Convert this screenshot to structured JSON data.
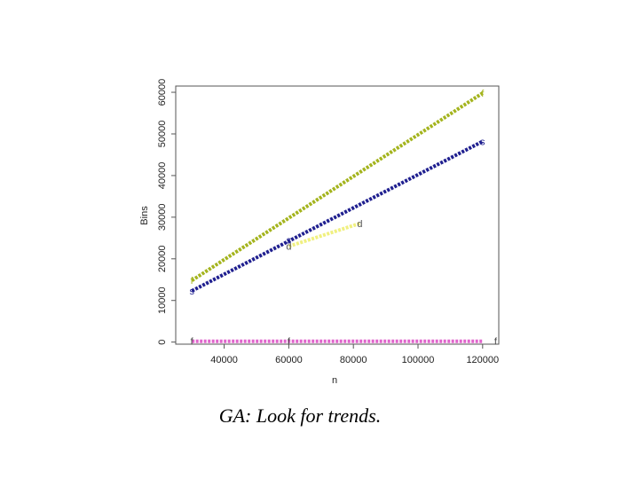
{
  "chart_data": {
    "type": "line",
    "xlabel": "n",
    "ylabel": "Bins",
    "xlim": [
      25000,
      125000
    ],
    "ylim": [
      -500,
      61500
    ],
    "x_ticks": [
      40000,
      60000,
      80000,
      100000,
      120000
    ],
    "x_tick_labels": [
      "40000",
      "60000",
      "80000",
      "100000",
      "120000"
    ],
    "y_ticks": [
      0,
      10000,
      20000,
      30000,
      40000,
      50000,
      60000
    ],
    "y_tick_labels": [
      "0",
      "10000",
      "20000",
      "30000",
      "40000",
      "50000",
      "60000"
    ],
    "grid": false,
    "series": [
      {
        "marker": "f",
        "color": "#a4b41e",
        "x": [
          30000,
          120000
        ],
        "y": [
          14800,
          59800
        ],
        "labels": [
          {
            "x": 30000,
            "y": 14800,
            "text": "f"
          },
          {
            "x": 120000,
            "y": 59800,
            "text": "f"
          }
        ]
      },
      {
        "marker": "s",
        "color": "#1f1f8f",
        "x": [
          30000,
          120000
        ],
        "y": [
          12300,
          48200
        ],
        "labels": [
          {
            "x": 30000,
            "y": 12300,
            "text": "s"
          },
          {
            "x": 120000,
            "y": 48200,
            "text": "s"
          }
        ]
      },
      {
        "marker": "d",
        "color": "#f0f080",
        "x": [
          60000,
          82000
        ],
        "y": [
          23000,
          28500
        ],
        "labels": [
          {
            "x": 60000,
            "y": 23000,
            "text": "d"
          },
          {
            "x": 82000,
            "y": 28500,
            "text": "d"
          }
        ]
      },
      {
        "marker": "f",
        "color": "#e066cc",
        "x": [
          30000,
          120000
        ],
        "y": [
          200,
          200
        ],
        "labels": [
          {
            "x": 30000,
            "y": 200,
            "text": "f"
          },
          {
            "x": 60000,
            "y": 200,
            "text": "f"
          },
          {
            "x": 124000,
            "y": 200,
            "text": "f"
          }
        ]
      }
    ],
    "extra_labels": [
      {
        "x": 60000,
        "y": 24500,
        "text": "s",
        "color": "#1f1f8f"
      }
    ]
  },
  "caption": "GA: Look for trends."
}
